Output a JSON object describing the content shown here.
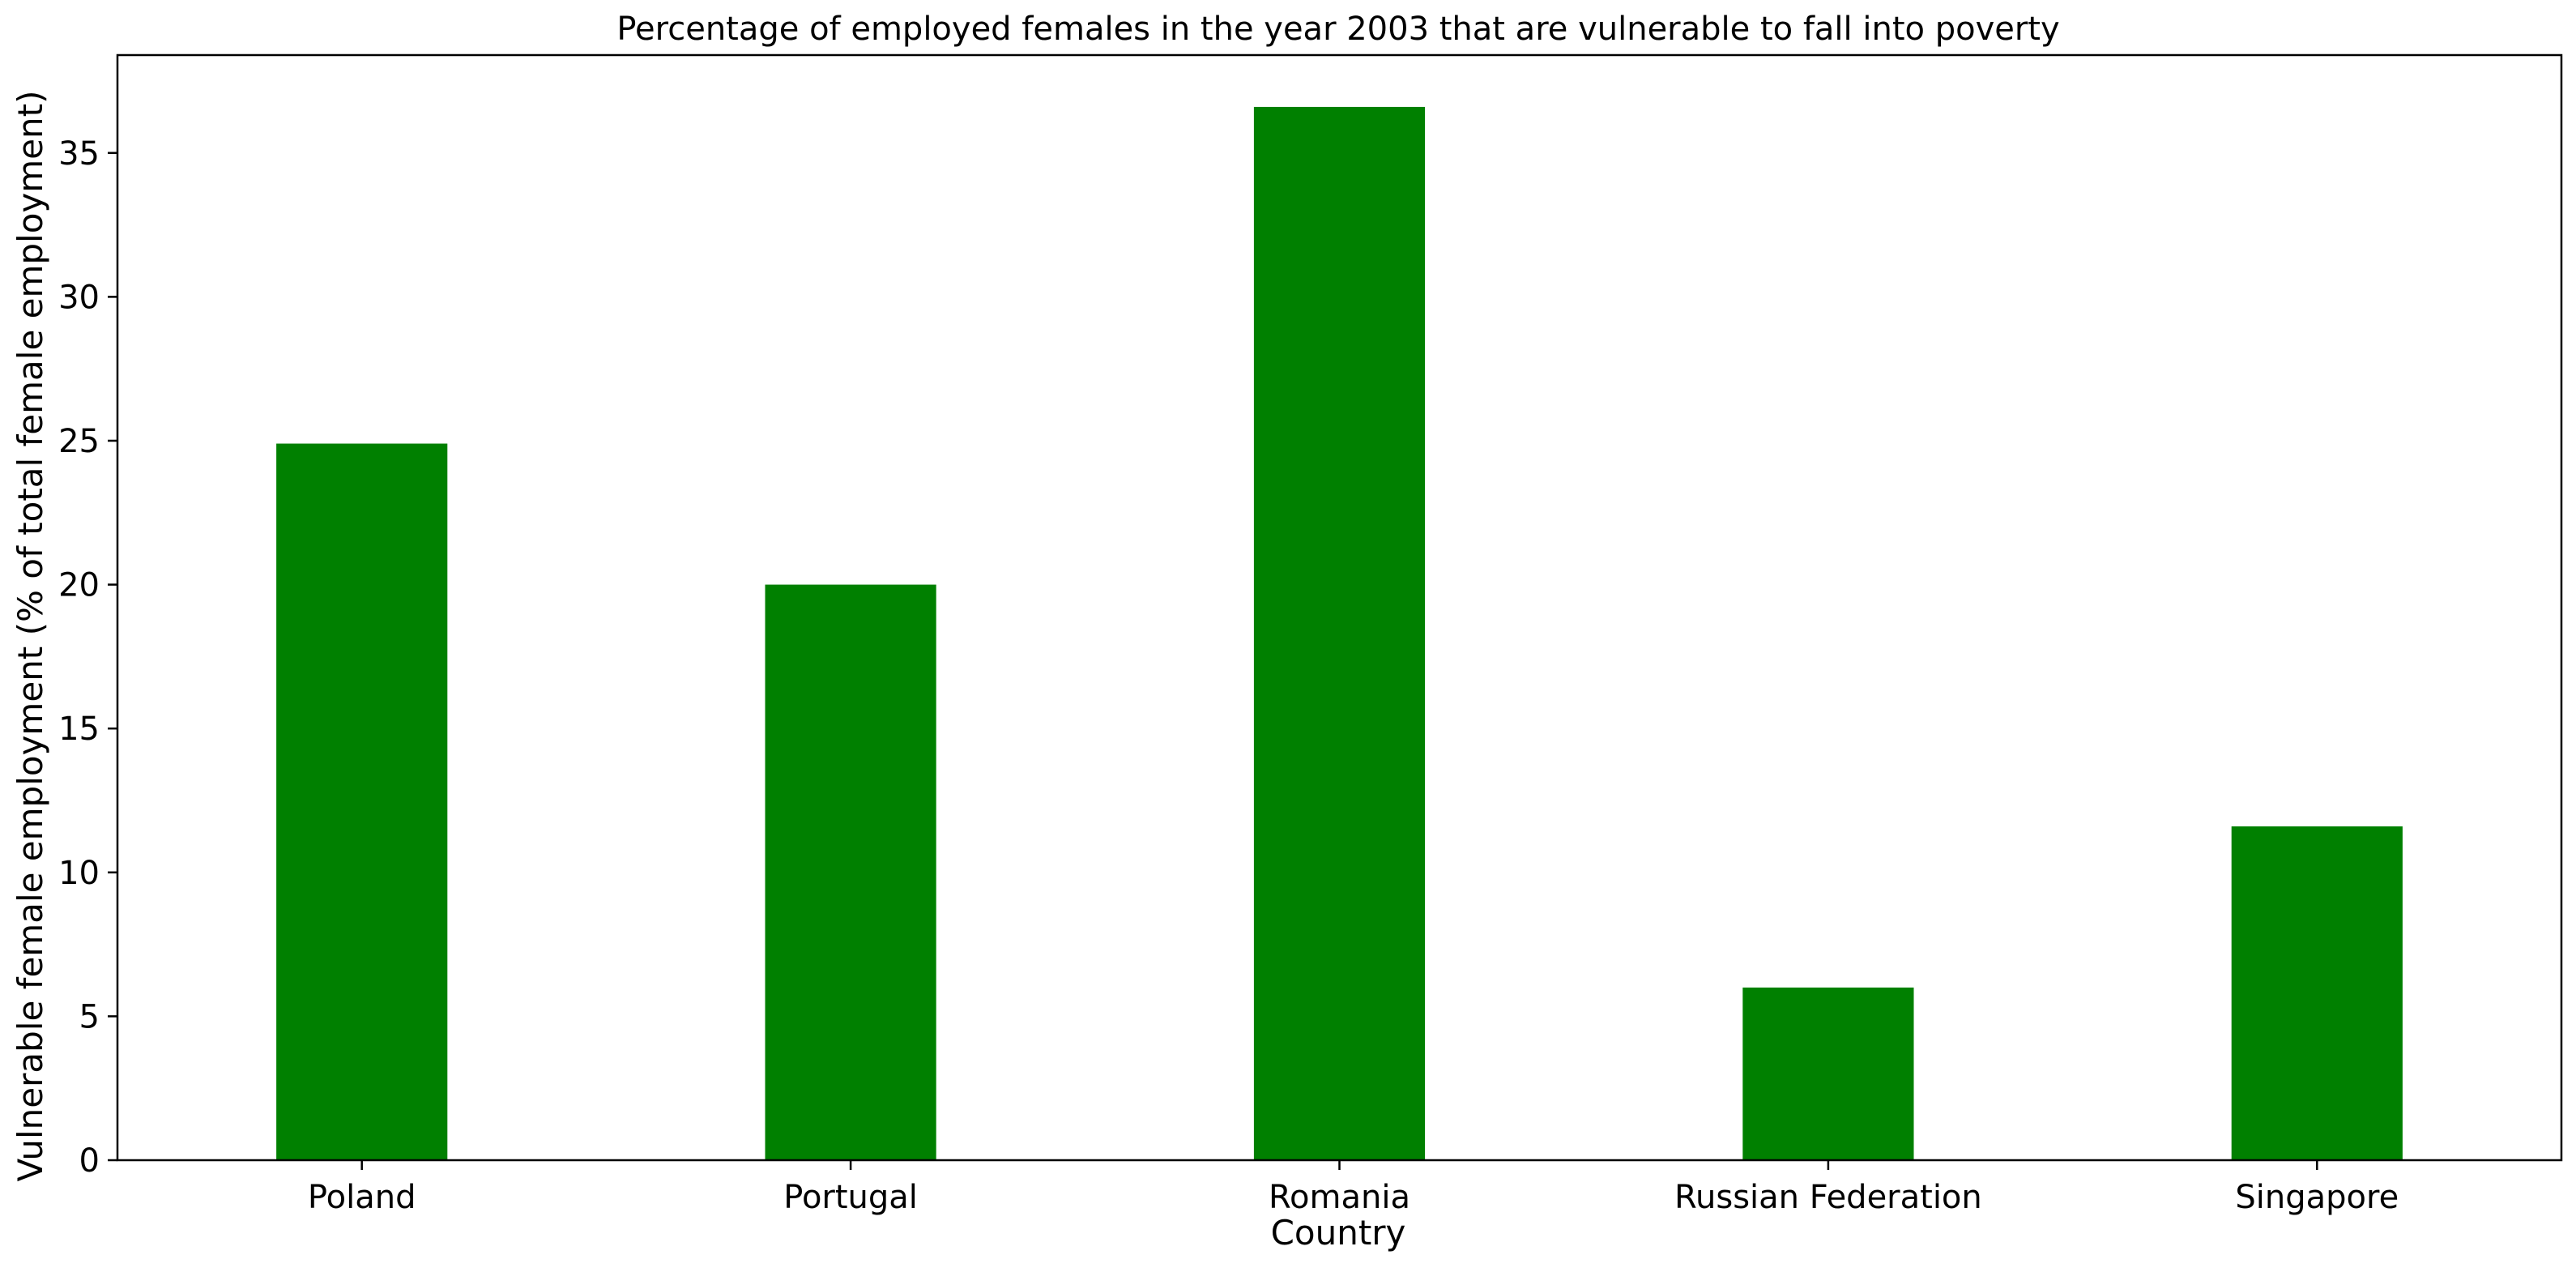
{
  "chart_data": {
    "type": "bar",
    "title": "Percentage of employed females in the year 2003 that are vulnerable to fall into poverty",
    "xlabel": "Country",
    "ylabel": "Vulnerable female employment (% of total female employment)",
    "categories": [
      "Poland",
      "Portugal",
      "Romania",
      "Russian Federation",
      "Singapore"
    ],
    "values": [
      24.9,
      20.0,
      36.6,
      6.0,
      11.6
    ],
    "ylim": [
      0,
      38.4
    ],
    "yticks": [
      0,
      5,
      10,
      15,
      20,
      25,
      30,
      35
    ],
    "bar_color": "#008000",
    "grid": false,
    "legend": false
  }
}
